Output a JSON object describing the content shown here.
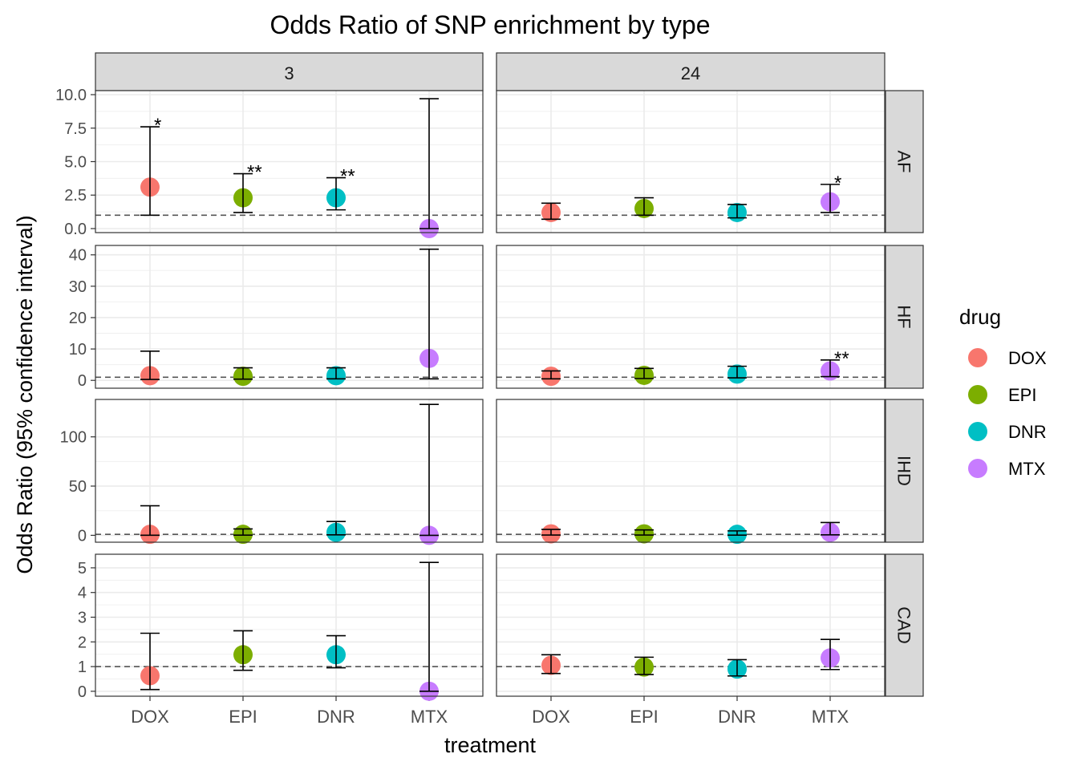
{
  "chart_data": {
    "type": "scatter",
    "title": "Odds Ratio of SNP enrichment by type",
    "xlabel": "treatment",
    "ylabel": "Odds Ratio (95% confidence interval)",
    "categories": [
      "DOX",
      "EPI",
      "DNR",
      "MTX"
    ],
    "columns": [
      "3",
      "24"
    ],
    "rows": [
      "AF",
      "HF",
      "IHD",
      "CAD"
    ],
    "reference_line": 1,
    "grid": true,
    "legend": {
      "title": "drug",
      "position": "right",
      "entries": [
        {
          "name": "DOX",
          "color": "#F8766D"
        },
        {
          "name": "EPI",
          "color": "#7CAE00"
        },
        {
          "name": "DNR",
          "color": "#00BFC4"
        },
        {
          "name": "MTX",
          "color": "#C77CFF"
        }
      ]
    },
    "y_axes": {
      "AF": {
        "ylim": [
          -0.3,
          10.3
        ],
        "ticks": [
          0,
          2.5,
          5,
          7.5,
          10
        ],
        "tick_labels": [
          "0.0",
          "2.5",
          "5.0",
          "7.5",
          "10.0"
        ]
      },
      "HF": {
        "ylim": [
          -2.5,
          43
        ],
        "ticks": [
          0,
          10,
          20,
          30,
          40
        ],
        "tick_labels": [
          "0",
          "10",
          "20",
          "30",
          "40"
        ]
      },
      "IHD": {
        "ylim": [
          -7,
          138
        ],
        "ticks": [
          0,
          50,
          100
        ],
        "tick_labels": [
          "0",
          "50",
          "100"
        ]
      },
      "CAD": {
        "ylim": [
          -0.2,
          5.55
        ],
        "ticks": [
          0,
          1,
          2,
          3,
          4,
          5
        ],
        "tick_labels": [
          "0",
          "1",
          "2",
          "3",
          "4",
          "5"
        ]
      }
    },
    "panels": [
      {
        "time": "3",
        "type": "AF",
        "points": [
          {
            "drug": "DOX",
            "or": 3.1,
            "lo": 1.0,
            "hi": 7.6,
            "sig": "*"
          },
          {
            "drug": "EPI",
            "or": 2.3,
            "lo": 1.2,
            "hi": 4.1,
            "sig": "**"
          },
          {
            "drug": "DNR",
            "or": 2.3,
            "lo": 1.4,
            "hi": 3.8,
            "sig": "**"
          },
          {
            "drug": "MTX",
            "or": 0.0,
            "lo": 0.0,
            "hi": 9.7,
            "sig": ""
          }
        ]
      },
      {
        "time": "24",
        "type": "AF",
        "points": [
          {
            "drug": "DOX",
            "or": 1.2,
            "lo": 0.7,
            "hi": 1.9,
            "sig": ""
          },
          {
            "drug": "EPI",
            "or": 1.5,
            "lo": 1.0,
            "hi": 2.3,
            "sig": ""
          },
          {
            "drug": "DNR",
            "or": 1.2,
            "lo": 0.8,
            "hi": 1.8,
            "sig": ""
          },
          {
            "drug": "MTX",
            "or": 2.0,
            "lo": 1.2,
            "hi": 3.3,
            "sig": "*"
          }
        ]
      },
      {
        "time": "3",
        "type": "HF",
        "points": [
          {
            "drug": "DOX",
            "or": 1.5,
            "lo": 0.3,
            "hi": 9.3,
            "sig": ""
          },
          {
            "drug": "EPI",
            "or": 1.3,
            "lo": 0.4,
            "hi": 4.0,
            "sig": ""
          },
          {
            "drug": "DNR",
            "or": 1.5,
            "lo": 0.5,
            "hi": 4.0,
            "sig": ""
          },
          {
            "drug": "MTX",
            "or": 7.0,
            "lo": 0.5,
            "hi": 41.8,
            "sig": ""
          }
        ]
      },
      {
        "time": "24",
        "type": "HF",
        "points": [
          {
            "drug": "DOX",
            "or": 1.3,
            "lo": 0.5,
            "hi": 3.0,
            "sig": ""
          },
          {
            "drug": "EPI",
            "or": 1.6,
            "lo": 0.6,
            "hi": 3.8,
            "sig": ""
          },
          {
            "drug": "DNR",
            "or": 2.0,
            "lo": 0.8,
            "hi": 4.5,
            "sig": ""
          },
          {
            "drug": "MTX",
            "or": 3.0,
            "lo": 1.2,
            "hi": 6.5,
            "sig": "**"
          }
        ]
      },
      {
        "time": "3",
        "type": "IHD",
        "points": [
          {
            "drug": "DOX",
            "or": 1.0,
            "lo": 0.1,
            "hi": 30.0,
            "sig": ""
          },
          {
            "drug": "EPI",
            "or": 1.0,
            "lo": 0.2,
            "hi": 6.5,
            "sig": ""
          },
          {
            "drug": "DNR",
            "or": 3.0,
            "lo": 0.5,
            "hi": 14.0,
            "sig": ""
          },
          {
            "drug": "MTX",
            "or": 0.0,
            "lo": 0.0,
            "hi": 133.0,
            "sig": ""
          }
        ]
      },
      {
        "time": "24",
        "type": "IHD",
        "points": [
          {
            "drug": "DOX",
            "or": 1.5,
            "lo": 0.3,
            "hi": 6.0,
            "sig": ""
          },
          {
            "drug": "EPI",
            "or": 1.5,
            "lo": 0.3,
            "hi": 5.5,
            "sig": ""
          },
          {
            "drug": "DNR",
            "or": 1.0,
            "lo": 0.2,
            "hi": 4.5,
            "sig": ""
          },
          {
            "drug": "MTX",
            "or": 3.0,
            "lo": 0.5,
            "hi": 13.0,
            "sig": ""
          }
        ]
      },
      {
        "time": "3",
        "type": "CAD",
        "points": [
          {
            "drug": "DOX",
            "or": 0.63,
            "lo": 0.07,
            "hi": 2.35,
            "sig": ""
          },
          {
            "drug": "EPI",
            "or": 1.48,
            "lo": 0.85,
            "hi": 2.45,
            "sig": ""
          },
          {
            "drug": "DNR",
            "or": 1.48,
            "lo": 0.95,
            "hi": 2.25,
            "sig": ""
          },
          {
            "drug": "MTX",
            "or": 0.0,
            "lo": 0.0,
            "hi": 5.22,
            "sig": ""
          }
        ]
      },
      {
        "time": "24",
        "type": "CAD",
        "points": [
          {
            "drug": "DOX",
            "or": 1.05,
            "lo": 0.72,
            "hi": 1.48,
            "sig": ""
          },
          {
            "drug": "EPI",
            "or": 0.98,
            "lo": 0.68,
            "hi": 1.38,
            "sig": ""
          },
          {
            "drug": "DNR",
            "or": 0.9,
            "lo": 0.62,
            "hi": 1.28,
            "sig": ""
          },
          {
            "drug": "MTX",
            "or": 1.35,
            "lo": 0.88,
            "hi": 2.1,
            "sig": ""
          }
        ]
      }
    ]
  }
}
